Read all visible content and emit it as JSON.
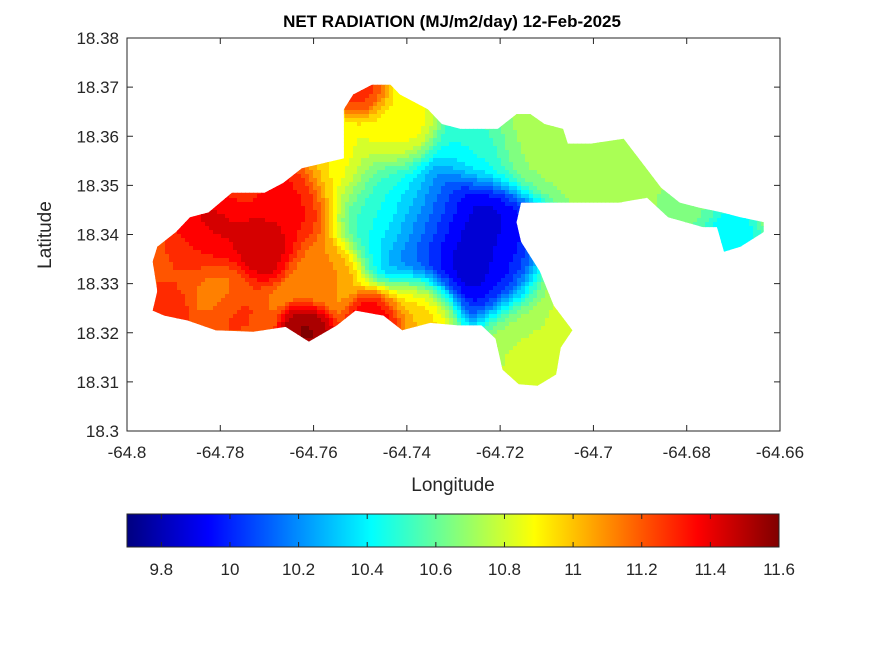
{
  "chart_data": {
    "type": "heatmap",
    "title": "NET RADIATION (MJ/m2/day) 12-Feb-2025",
    "xlabel": "Longitude",
    "ylabel": "Latitude",
    "xlim": [
      -64.8,
      -64.66
    ],
    "ylim": [
      18.3,
      18.38
    ],
    "x_ticks": [
      "-64.8",
      "-64.78",
      "-64.76",
      "-64.74",
      "-64.72",
      "-64.7",
      "-64.68",
      "-64.66"
    ],
    "y_ticks": [
      "18.3",
      "18.31",
      "18.32",
      "18.33",
      "18.34",
      "18.35",
      "18.36",
      "18.37",
      "18.38"
    ],
    "colorbar": {
      "colormap": "jet",
      "range": [
        9.7,
        11.6
      ],
      "ticks": [
        "9.8",
        "10",
        "10.2",
        "10.4",
        "10.6",
        "10.8",
        "11",
        "11.2",
        "11.4",
        "11.6"
      ]
    },
    "outline": [
      [
        -64.792,
        18.3235
      ],
      [
        -64.787,
        18.3225
      ],
      [
        -64.781,
        18.3205
      ],
      [
        -64.773,
        18.3202
      ],
      [
        -64.766,
        18.3212
      ],
      [
        -64.761,
        18.3182
      ],
      [
        -64.755,
        18.3215
      ],
      [
        -64.751,
        18.3245
      ],
      [
        -64.745,
        18.3235
      ],
      [
        -64.741,
        18.3205
      ],
      [
        -64.735,
        18.322
      ],
      [
        -64.729,
        18.3215
      ],
      [
        -64.724,
        18.3215
      ],
      [
        -64.721,
        18.3188
      ],
      [
        -64.7195,
        18.3125
      ],
      [
        -64.716,
        18.3095
      ],
      [
        -64.712,
        18.3092
      ],
      [
        -64.708,
        18.3115
      ],
      [
        -64.707,
        18.317
      ],
      [
        -64.7045,
        18.3205
      ],
      [
        -64.7085,
        18.3255
      ],
      [
        -64.7115,
        18.3325
      ],
      [
        -64.7155,
        18.3385
      ],
      [
        -64.7165,
        18.3425
      ],
      [
        -64.7155,
        18.3465
      ],
      [
        -64.7055,
        18.3465
      ],
      [
        -64.6945,
        18.3465
      ],
      [
        -64.6885,
        18.3475
      ],
      [
        -64.684,
        18.3435
      ],
      [
        -64.6765,
        18.3415
      ],
      [
        -64.6735,
        18.3415
      ],
      [
        -64.672,
        18.3365
      ],
      [
        -64.6685,
        18.3375
      ],
      [
        -64.6635,
        18.3405
      ],
      [
        -64.6635,
        18.3425
      ],
      [
        -64.6685,
        18.3435
      ],
      [
        -64.6725,
        18.3445
      ],
      [
        -64.6775,
        18.3455
      ],
      [
        -64.6815,
        18.3465
      ],
      [
        -64.6855,
        18.3495
      ],
      [
        -64.6935,
        18.3595
      ],
      [
        -64.7005,
        18.3585
      ],
      [
        -64.7055,
        18.3585
      ],
      [
        -64.7065,
        18.3615
      ],
      [
        -64.7105,
        18.3625
      ],
      [
        -64.7135,
        18.3645
      ],
      [
        -64.7165,
        18.3645
      ],
      [
        -64.7205,
        18.3615
      ],
      [
        -64.7245,
        18.3615
      ],
      [
        -64.7285,
        18.3615
      ],
      [
        -64.7325,
        18.3625
      ],
      [
        -64.7355,
        18.3655
      ],
      [
        -64.7415,
        18.3685
      ],
      [
        -64.7435,
        18.3705
      ],
      [
        -64.7475,
        18.3705
      ],
      [
        -64.7515,
        18.3685
      ],
      [
        -64.7535,
        18.3655
      ],
      [
        -64.7535,
        18.3555
      ],
      [
        -64.7625,
        18.3535
      ],
      [
        -64.7665,
        18.3505
      ],
      [
        -64.7705,
        18.3485
      ],
      [
        -64.7745,
        18.3485
      ],
      [
        -64.7775,
        18.3485
      ],
      [
        -64.7825,
        18.3445
      ],
      [
        -64.7865,
        18.3435
      ],
      [
        -64.7895,
        18.3405
      ],
      [
        -64.7935,
        18.3375
      ],
      [
        -64.7945,
        18.3345
      ],
      [
        -64.7935,
        18.3285
      ],
      [
        -64.7945,
        18.3245
      ]
    ],
    "features": [
      {
        "x": -64.7275,
        "y": 18.3385,
        "value": 9.72,
        "spread": 0.0072
      },
      {
        "x": -64.7225,
        "y": 18.3358,
        "value": 9.85,
        "spread": 0.0055
      },
      {
        "x": -64.718,
        "y": 18.3355,
        "value": 10.05,
        "spread": 0.005
      },
      {
        "x": -64.736,
        "y": 18.342,
        "value": 10.25,
        "spread": 0.006
      },
      {
        "x": -64.7245,
        "y": 18.3575,
        "value": 10.45,
        "spread": 0.004
      },
      {
        "x": -64.746,
        "y": 18.347,
        "value": 10.5,
        "spread": 0.006
      },
      {
        "x": -64.7435,
        "y": 18.3605,
        "value": 10.92,
        "spread": 0.004
      },
      {
        "x": -64.7125,
        "y": 18.3595,
        "value": 10.72,
        "spread": 0.006
      },
      {
        "x": -64.7075,
        "y": 18.3305,
        "value": 10.82,
        "spread": 0.0045
      },
      {
        "x": -64.714,
        "y": 18.3205,
        "value": 10.78,
        "spread": 0.005
      },
      {
        "x": -64.698,
        "y": 18.352,
        "value": 10.7,
        "spread": 0.006
      },
      {
        "x": -64.6715,
        "y": 18.3395,
        "value": 10.38,
        "spread": 0.003
      },
      {
        "x": -64.6795,
        "y": 18.3445,
        "value": 10.62,
        "spread": 0.003
      },
      {
        "x": -64.7585,
        "y": 18.3325,
        "value": 11.12,
        "spread": 0.004
      },
      {
        "x": -64.7545,
        "y": 18.3535,
        "value": 10.95,
        "spread": 0.004
      },
      {
        "x": -64.7365,
        "y": 18.3248,
        "value": 11.05,
        "spread": 0.004
      },
      {
        "x": -64.7645,
        "y": 18.346,
        "value": 11.38,
        "spread": 0.005
      },
      {
        "x": -64.7705,
        "y": 18.3375,
        "value": 11.52,
        "spread": 0.0035
      },
      {
        "x": -64.7825,
        "y": 18.3405,
        "value": 11.45,
        "spread": 0.0045
      },
      {
        "x": -64.787,
        "y": 18.3335,
        "value": 11.25,
        "spread": 0.0045
      },
      {
        "x": -64.7815,
        "y": 18.3285,
        "value": 11.05,
        "spread": 0.003
      },
      {
        "x": -64.7775,
        "y": 18.3245,
        "value": 11.28,
        "spread": 0.004
      },
      {
        "x": -64.7615,
        "y": 18.3205,
        "value": 11.6,
        "spread": 0.0028
      },
      {
        "x": -64.7465,
        "y": 18.3218,
        "value": 11.45,
        "spread": 0.0032
      },
      {
        "x": -64.7495,
        "y": 18.3685,
        "value": 11.3,
        "spread": 0.0025
      },
      {
        "x": -64.7915,
        "y": 18.3245,
        "value": 11.35,
        "spread": 0.003
      }
    ]
  }
}
